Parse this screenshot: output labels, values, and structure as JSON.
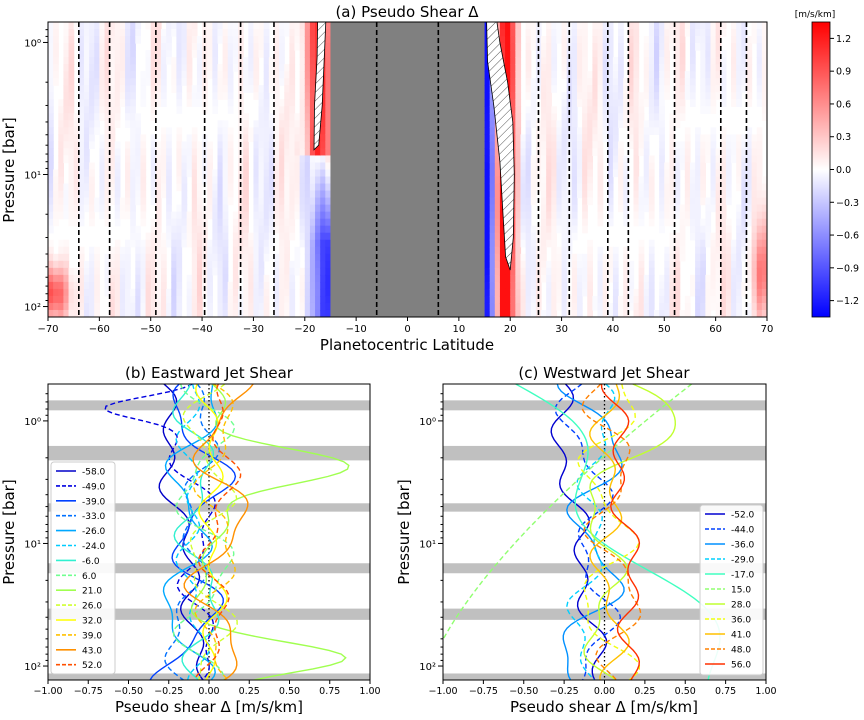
{
  "colors": {
    "neg": "#1010ff",
    "pos": "#ff1010",
    "mask": "#808080",
    "band": "#c0c0c0"
  },
  "chart_data": [
    {
      "id": "a",
      "type": "heatmap",
      "title": "(a) Pseudo Shear Δ",
      "xlabel": "Planetocentric Latitude",
      "ylabel": "Pressure [bar]",
      "xlim": [
        -70,
        70
      ],
      "ylim_bar": [
        0.7,
        120
      ],
      "y_scale": "log",
      "x_ticks": [
        "−70",
        "−60",
        "−50",
        "−40",
        "−30",
        "−20",
        "−10",
        "0",
        "10",
        "20",
        "30",
        "40",
        "50",
        "60",
        "70"
      ],
      "y_ticks": [
        "10⁰",
        "10¹",
        "10²"
      ],
      "masked_latitudes": [
        -15,
        15
      ],
      "jet_latitudes": [
        -64,
        -58,
        -49,
        -39.5,
        -32.5,
        -26,
        -6,
        6,
        25.5,
        31.5,
        39,
        43,
        52,
        61,
        66
      ],
      "colorbar": {
        "unit": "[m/s/km]",
        "range": [
          -1.35,
          1.35
        ],
        "ticks": [
          "1.2",
          "0.9",
          "0.6",
          "0.3",
          "0.0",
          "−0.3",
          "−0.6",
          "−0.9",
          "−1.2"
        ]
      }
    },
    {
      "id": "b",
      "type": "line",
      "title": "(b) Eastward Jet Shear",
      "xlabel": "Pseudo shear Δ [m/s/km]",
      "ylabel": "Pressure [bar]",
      "xlim": [
        -1.0,
        1.0
      ],
      "y_scale": "log",
      "x_ticks": [
        "−1.00",
        "−0.75",
        "−0.50",
        "−0.25",
        "0.00",
        "0.25",
        "0.50",
        "0.75",
        "1.00"
      ],
      "y_ticks": [
        "10⁰",
        "10¹",
        "10²"
      ],
      "legend_position": "center-left",
      "series": [
        {
          "name": "-58.0",
          "color": "#0000c8",
          "dash": false
        },
        {
          "name": "-49.0",
          "color": "#0000e0",
          "dash": true
        },
        {
          "name": "-39.0",
          "color": "#0040ff",
          "dash": false
        },
        {
          "name": "-33.0",
          "color": "#0070ff",
          "dash": true
        },
        {
          "name": "-26.0",
          "color": "#00a8ff",
          "dash": false
        },
        {
          "name": "-24.0",
          "color": "#00ccff",
          "dash": true
        },
        {
          "name": "-6.0",
          "color": "#30f0d0",
          "dash": false
        },
        {
          "name": "6.0",
          "color": "#70ff90",
          "dash": true
        },
        {
          "name": "21.0",
          "color": "#a0ff50",
          "dash": false
        },
        {
          "name": "26.0",
          "color": "#d0ff30",
          "dash": true
        },
        {
          "name": "32.0",
          "color": "#ffff00",
          "dash": false
        },
        {
          "name": "39.0",
          "color": "#ffc000",
          "dash": true
        },
        {
          "name": "43.0",
          "color": "#ff9000",
          "dash": false
        },
        {
          "name": "52.0",
          "color": "#ff5000",
          "dash": true
        }
      ]
    },
    {
      "id": "c",
      "type": "line",
      "title": "(c) Westward Jet Shear",
      "xlabel": "Pseudo shear Δ [m/s/km]",
      "ylabel": "Pressure [bar]",
      "xlim": [
        -1.0,
        1.0
      ],
      "y_scale": "log",
      "x_ticks": [
        "−1.00",
        "−0.75",
        "−0.50",
        "−0.25",
        "0.00",
        "0.25",
        "0.50",
        "0.75",
        "1.00"
      ],
      "y_ticks": [
        "10⁰",
        "10¹",
        "10²"
      ],
      "legend_position": "lower-right",
      "series": [
        {
          "name": "-52.0",
          "color": "#0000d0",
          "dash": false
        },
        {
          "name": "-44.0",
          "color": "#0040ff",
          "dash": true
        },
        {
          "name": "-36.0",
          "color": "#0090ff",
          "dash": false
        },
        {
          "name": "-29.0",
          "color": "#00d0ff",
          "dash": true
        },
        {
          "name": "-17.0",
          "color": "#40ffc0",
          "dash": false
        },
        {
          "name": "15.0",
          "color": "#90ff70",
          "dash": true
        },
        {
          "name": "28.0",
          "color": "#c0ff30",
          "dash": false
        },
        {
          "name": "36.0",
          "color": "#f0ff10",
          "dash": true
        },
        {
          "name": "41.0",
          "color": "#ffc000",
          "dash": false
        },
        {
          "name": "48.0",
          "color": "#ff8000",
          "dash": true
        },
        {
          "name": "56.0",
          "color": "#ff3000",
          "dash": false
        }
      ]
    }
  ]
}
